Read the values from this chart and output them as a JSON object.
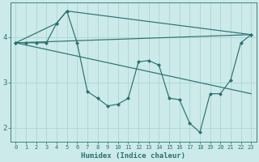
{
  "xlabel": "Humidex (Indice chaleur)",
  "bg_color": "#cceaea",
  "line_color": "#2d7070",
  "grid_color": "#b0d8d8",
  "xlim": [
    -0.5,
    23.5
  ],
  "ylim": [
    1.7,
    4.75
  ],
  "yticks": [
    2,
    3,
    4
  ],
  "xticks": [
    0,
    1,
    2,
    3,
    4,
    5,
    6,
    7,
    8,
    9,
    10,
    11,
    12,
    13,
    14,
    15,
    16,
    17,
    18,
    19,
    20,
    21,
    22,
    23
  ],
  "line1_x": [
    0,
    1,
    2,
    3,
    4,
    5,
    23
  ],
  "line1_y": [
    3.87,
    3.87,
    3.87,
    3.87,
    4.3,
    4.57,
    4.05
  ],
  "line2_x": [
    0,
    4,
    5,
    6,
    7,
    8,
    9,
    10,
    11,
    12,
    13,
    14,
    15,
    16,
    17,
    18,
    19,
    20,
    21,
    22,
    23
  ],
  "line2_y": [
    3.87,
    4.3,
    4.57,
    3.87,
    2.8,
    2.65,
    2.48,
    2.52,
    2.65,
    3.45,
    3.48,
    3.38,
    2.65,
    2.62,
    2.1,
    1.9,
    2.75,
    2.75,
    3.05,
    3.87,
    4.05
  ],
  "line3_x": [
    0,
    23
  ],
  "line3_y": [
    3.87,
    4.05
  ],
  "line4_x": [
    0,
    23
  ],
  "line4_y": [
    3.87,
    2.75
  ]
}
